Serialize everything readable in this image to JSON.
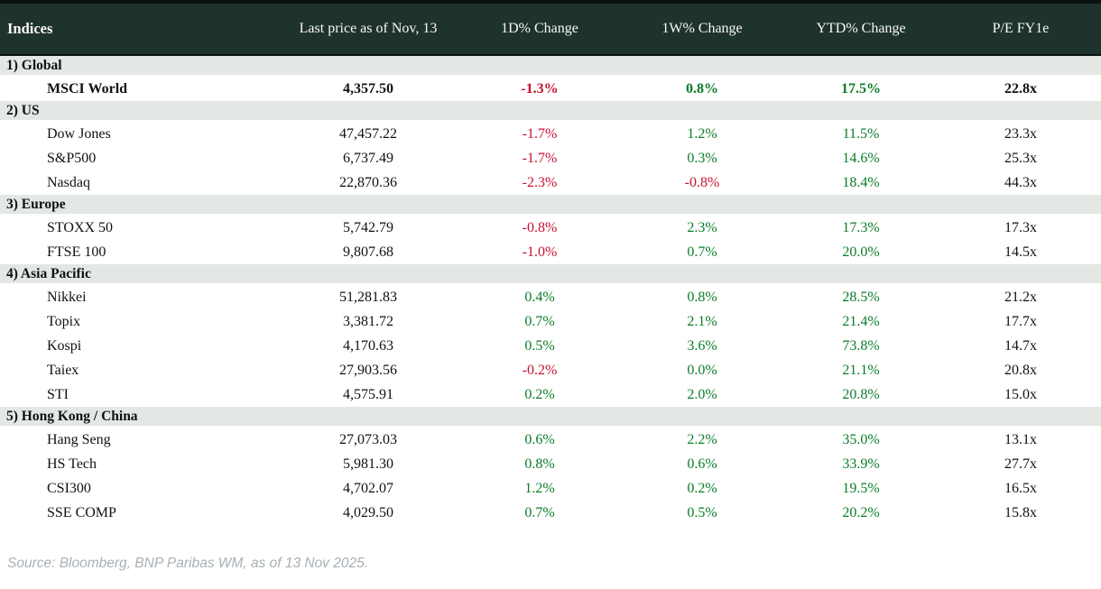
{
  "table": {
    "columns": [
      "Indices",
      "Last price as of Nov, 13",
      "1D% Change",
      "1W% Change",
      "YTD% Change",
      "P/E FY1e"
    ],
    "sections": [
      {
        "label": "1) Global",
        "rows": [
          {
            "name": "MSCI World",
            "last_price": "4,357.50",
            "d1": "-1.3%",
            "w1": "0.8%",
            "ytd": "17.5%",
            "pe": "22.8x",
            "bold": true
          }
        ]
      },
      {
        "label": "2) US",
        "rows": [
          {
            "name": "Dow Jones",
            "last_price": "47,457.22",
            "d1": "-1.7%",
            "w1": "1.2%",
            "ytd": "11.5%",
            "pe": "23.3x",
            "bold": false
          },
          {
            "name": "S&P500",
            "last_price": "6,737.49",
            "d1": "-1.7%",
            "w1": "0.3%",
            "ytd": "14.6%",
            "pe": "25.3x",
            "bold": false
          },
          {
            "name": "Nasdaq",
            "last_price": "22,870.36",
            "d1": "-2.3%",
            "w1": "-0.8%",
            "ytd": "18.4%",
            "pe": "44.3x",
            "bold": false
          }
        ]
      },
      {
        "label": "3) Europe",
        "rows": [
          {
            "name": "STOXX 50",
            "last_price": "5,742.79",
            "d1": "-0.8%",
            "w1": "2.3%",
            "ytd": "17.3%",
            "pe": "17.3x",
            "bold": false
          },
          {
            "name": "FTSE 100",
            "last_price": "9,807.68",
            "d1": "-1.0%",
            "w1": "0.7%",
            "ytd": "20.0%",
            "pe": "14.5x",
            "bold": false
          }
        ]
      },
      {
        "label": "4) Asia Pacific",
        "rows": [
          {
            "name": "Nikkei",
            "last_price": "51,281.83",
            "d1": "0.4%",
            "w1": "0.8%",
            "ytd": "28.5%",
            "pe": "21.2x",
            "bold": false
          },
          {
            "name": "Topix",
            "last_price": "3,381.72",
            "d1": "0.7%",
            "w1": "2.1%",
            "ytd": "21.4%",
            "pe": "17.7x",
            "bold": false
          },
          {
            "name": "Kospi",
            "last_price": "4,170.63",
            "d1": "0.5%",
            "w1": "3.6%",
            "ytd": "73.8%",
            "pe": "14.7x",
            "bold": false
          },
          {
            "name": "Taiex",
            "last_price": "27,903.56",
            "d1": "-0.2%",
            "w1": "0.0%",
            "ytd": "21.1%",
            "pe": "20.8x",
            "bold": false
          },
          {
            "name": "STI",
            "last_price": "4,575.91",
            "d1": "0.2%",
            "w1": "2.0%",
            "ytd": "20.8%",
            "pe": "15.0x",
            "bold": false
          }
        ]
      },
      {
        "label": "5) Hong Kong / China",
        "rows": [
          {
            "name": "Hang Seng",
            "last_price": "27,073.03",
            "d1": "0.6%",
            "w1": "2.2%",
            "ytd": "35.0%",
            "pe": "13.1x",
            "bold": false
          },
          {
            "name": "HS Tech",
            "last_price": "5,981.30",
            "d1": "0.8%",
            "w1": "0.6%",
            "ytd": "33.9%",
            "pe": "27.7x",
            "bold": false
          },
          {
            "name": "CSI300",
            "last_price": "4,702.07",
            "d1": "1.2%",
            "w1": "0.2%",
            "ytd": "19.5%",
            "pe": "16.5x",
            "bold": false
          },
          {
            "name": "SSE COMP",
            "last_price": "4,029.50",
            "d1": "0.7%",
            "w1": "0.5%",
            "ytd": "20.2%",
            "pe": "15.8x",
            "bold": false
          }
        ]
      }
    ]
  },
  "footer": {
    "source": "Source: Bloomberg, BNP Paribas WM, as of 13 Nov 2025."
  },
  "colors": {
    "header_bg": "#1e332d",
    "header_fg": "#faf8f0",
    "section_bg": "#e3e8e4",
    "positive": "#0a7d28",
    "negative": "#c8102e",
    "edge": "#0c1210",
    "source_fg": "#a8b0b5"
  }
}
